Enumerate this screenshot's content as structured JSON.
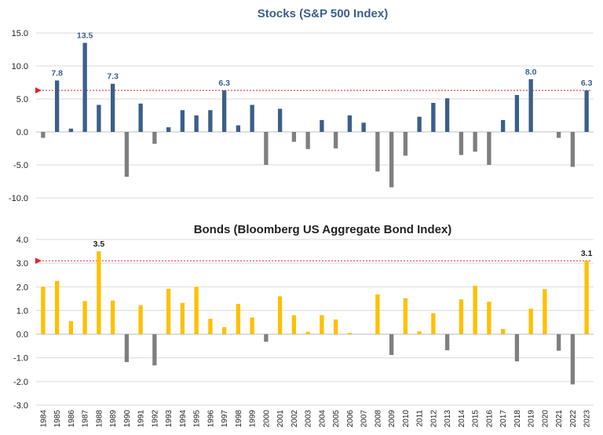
{
  "chart_data": [
    {
      "type": "bar",
      "title": "Stocks (S&P 500 Index)",
      "xlabel": "",
      "ylabel": "",
      "ylim": [
        -10,
        15
      ],
      "yticks": [
        "15.0",
        "10.0",
        "5.0",
        "0.0",
        "-5.0",
        "-10.0"
      ],
      "grid": true,
      "legend": "none",
      "categories": [
        "1984",
        "1985",
        "1986",
        "1987",
        "1988",
        "1989",
        "1990",
        "1991",
        "1992",
        "1993",
        "1994",
        "1995",
        "1996",
        "1997",
        "1998",
        "1999",
        "2000",
        "2001",
        "2002",
        "2003",
        "2004",
        "2005",
        "2006",
        "2007",
        "2008",
        "2009",
        "2010",
        "2011",
        "2012",
        "2013",
        "2014",
        "2015",
        "2016",
        "2017",
        "2018",
        "2019",
        "2020",
        "2021",
        "2022",
        "2023"
      ],
      "values": [
        -0.9,
        7.8,
        0.5,
        13.5,
        4.1,
        7.3,
        -6.8,
        4.3,
        -1.8,
        0.7,
        3.3,
        2.5,
        3.3,
        6.3,
        1.0,
        4.1,
        -5.0,
        3.5,
        -1.5,
        -2.6,
        1.8,
        -2.5,
        2.5,
        1.4,
        -6.0,
        -8.4,
        -3.6,
        2.3,
        4.4,
        5.1,
        -3.5,
        -3.0,
        -5.0,
        1.8,
        5.6,
        8.0,
        0.0,
        -0.9,
        -5.3,
        6.3
      ],
      "data_labels": {
        "1985": "7.8",
        "1987": "13.5",
        "1989": "7.3",
        "1997": "6.3",
        "2019": "8.0",
        "2023": "6.3"
      },
      "reference_line": {
        "value": 6.3,
        "style": "dotted",
        "arrow": "left"
      },
      "colors": {
        "positive": "#3a5f8a",
        "negative": "#7f7f7f",
        "label": "#3a5f8a",
        "title": "#3a5f8a",
        "reference": "#e8232a"
      }
    },
    {
      "type": "bar",
      "title": "Bonds (Bloomberg US Aggregate Bond Index)",
      "xlabel": "",
      "ylabel": "",
      "ylim": [
        -3,
        4
      ],
      "yticks": [
        "4.0",
        "3.0",
        "2.0",
        "1.0",
        "0.0",
        "-1.0",
        "-2.0",
        "-3.0"
      ],
      "grid": true,
      "legend": "none",
      "categories": [
        "1984",
        "1985",
        "1986",
        "1987",
        "1988",
        "1989",
        "1990",
        "1991",
        "1992",
        "1993",
        "1994",
        "1995",
        "1996",
        "1997",
        "1998",
        "1999",
        "2000",
        "2001",
        "2002",
        "2003",
        "2004",
        "2005",
        "2006",
        "2007",
        "2008",
        "2009",
        "2010",
        "2011",
        "2012",
        "2013",
        "2014",
        "2015",
        "2016",
        "2017",
        "2018",
        "2019",
        "2020",
        "2021",
        "2022",
        "2023"
      ],
      "values": [
        2.0,
        2.25,
        0.55,
        1.4,
        3.5,
        1.42,
        -1.18,
        1.22,
        -1.32,
        1.92,
        1.32,
        2.0,
        0.65,
        0.3,
        1.28,
        0.7,
        -0.32,
        1.6,
        0.8,
        0.1,
        0.8,
        0.62,
        0.05,
        0.0,
        1.68,
        -0.88,
        1.52,
        0.12,
        0.88,
        -0.68,
        1.47,
        2.05,
        1.37,
        0.22,
        -1.15,
        1.08,
        1.9,
        -0.7,
        -2.12,
        3.1
      ],
      "data_labels": {
        "1988": "3.5",
        "2023": "3.1"
      },
      "reference_line": {
        "value": 3.1,
        "style": "dotted",
        "arrow": "left"
      },
      "colors": {
        "positive": "#ffc000",
        "negative": "#7f7f7f",
        "label": "#222222",
        "title": "#222222",
        "reference": "#e8232a"
      }
    }
  ]
}
